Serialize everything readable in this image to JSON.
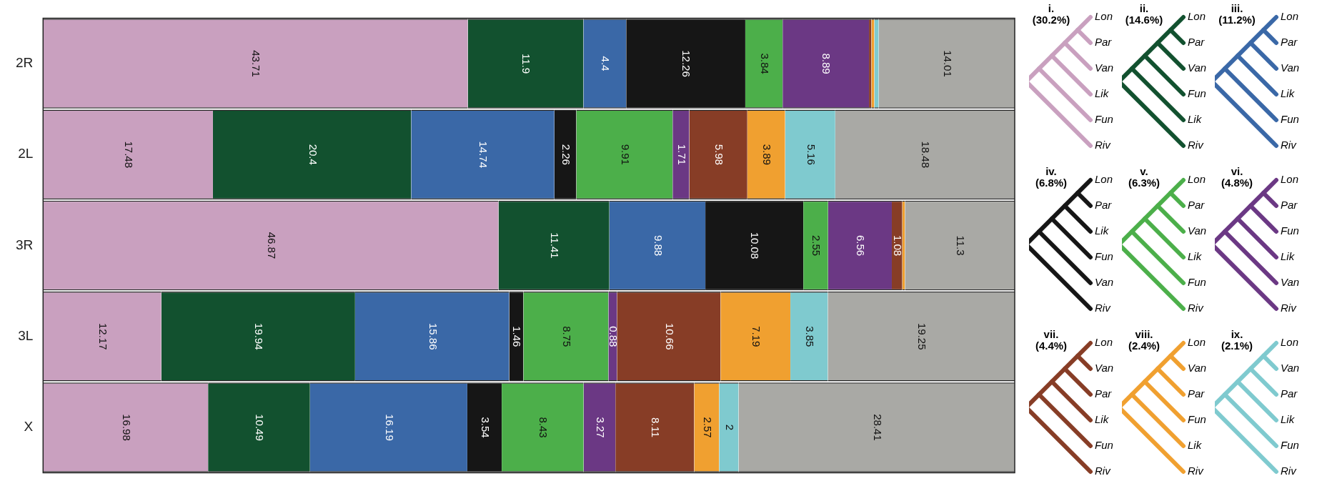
{
  "chart_data": {
    "type": "bar",
    "orientation": "horizontal",
    "stacked": true,
    "categories": [
      "2R",
      "2L",
      "3R",
      "3L",
      "X"
    ],
    "xlim": [
      0,
      100
    ],
    "tick_labels": "y",
    "grid": false,
    "legend": "right",
    "series": [
      {
        "name": "i. (30.2%)",
        "color": "#c9a0bf",
        "values": [
          43.71,
          17.48,
          46.87,
          12.17,
          16.98
        ],
        "value_labels": [
          "43.71",
          "17.48",
          "46.87",
          "12.17",
          "16.98"
        ]
      },
      {
        "name": "ii. (14.6%)",
        "color": "#12512f",
        "values": [
          11.9,
          20.4,
          11.41,
          19.94,
          10.49
        ],
        "value_labels": [
          "11.9",
          "20.4",
          "11.41",
          "19.94",
          "10.49"
        ]
      },
      {
        "name": "iii. (11.2%)",
        "color": "#3a68a7",
        "values": [
          4.4,
          14.74,
          9.88,
          15.86,
          16.19
        ],
        "value_labels": [
          "4.4",
          "14.74",
          "9.88",
          "15.86",
          "16.19"
        ]
      },
      {
        "name": "iv. (6.8%)",
        "color": "#161616",
        "values": [
          12.26,
          2.26,
          10.08,
          1.46,
          3.54
        ],
        "value_labels": [
          "12.26",
          "2.26",
          "10.08",
          "1.46",
          "3.54"
        ]
      },
      {
        "name": "v. (6.3%)",
        "color": "#4caf4a",
        "values": [
          3.84,
          9.91,
          2.55,
          8.75,
          8.43
        ],
        "value_labels": [
          "3.84",
          "9.91",
          "2.55",
          "8.75",
          "8.43"
        ]
      },
      {
        "name": "vi. (4.8%)",
        "color": "#6b3884",
        "values": [
          8.89,
          1.71,
          6.56,
          0.88,
          3.27
        ],
        "value_labels": [
          "8.89",
          "1.71",
          "6.56",
          "0.88",
          "3.27"
        ]
      },
      {
        "name": "vii. (4.4%)",
        "color": "#873d26",
        "values": [
          0.25,
          5.98,
          1.08,
          10.66,
          8.11
        ],
        "value_labels": [
          null,
          "5.98",
          "1.08",
          "10.66",
          "8.11"
        ]
      },
      {
        "name": "viii. (2.4%)",
        "color": "#f0a030",
        "values": [
          0.3,
          3.89,
          0.27,
          7.19,
          2.57
        ],
        "value_labels": [
          null,
          "3.89",
          null,
          "7.19",
          "2.57"
        ]
      },
      {
        "name": "ix. (2.1%)",
        "color": "#7fcacf",
        "values": [
          0.45,
          5.16,
          0,
          3.85,
          2
        ],
        "value_labels": [
          null,
          "5.16",
          null,
          "3.85",
          "2"
        ]
      },
      {
        "color": "#a9a9a5",
        "values": [
          14.01,
          18.48,
          11.3,
          19.25,
          28.41
        ],
        "value_labels": [
          "14.01",
          "18.48",
          "11.3",
          "19.25",
          "28.41"
        ]
      }
    ],
    "annotations": [
      "Lon",
      "Par",
      "Van",
      "Lik",
      "Fun",
      "Riv",
      "Lon",
      "Par",
      "Van",
      "Fun",
      "Lik",
      "Riv",
      "Lon",
      "Par",
      "Van",
      "Lik",
      "Fun",
      "Riv",
      "Lon",
      "Par",
      "Lik",
      "Fun",
      "Van",
      "Riv",
      "Lon",
      "Par",
      "Van",
      "Lik",
      "Fun",
      "Riv",
      "Lon",
      "Par",
      "Fun",
      "Lik",
      "Van",
      "Riv",
      "Lon",
      "Van",
      "Par",
      "Lik",
      "Fun",
      "Riv",
      "Lon",
      "Van",
      "Par",
      "Fun",
      "Lik",
      "Riv",
      "Lon",
      "Van",
      "Par",
      "Lik",
      "Fun",
      "Riv"
    ]
  }
}
